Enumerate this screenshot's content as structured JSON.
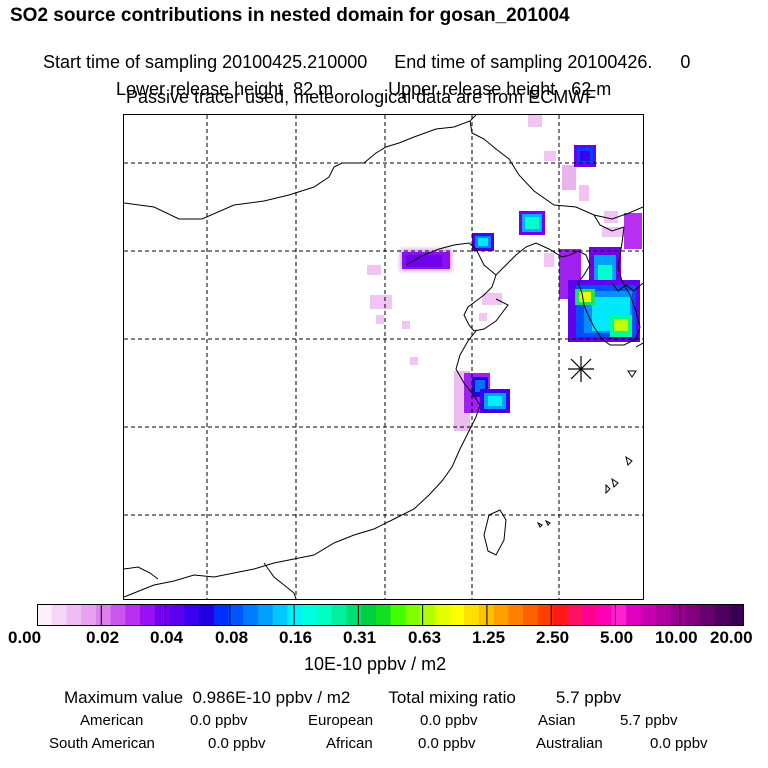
{
  "header": {
    "title": "SO2 source contributions in nested domain for gosan_201004",
    "start_label": "Start time of sampling 20100425.210000",
    "end_label": "End time of sampling 20100426.",
    "end_value": "0",
    "lower_label": "Lower release height",
    "lower_value": "82 m",
    "upper_label": "Upper release height",
    "upper_value": "62 m",
    "tracer_note": "Passive tracer used, meteorological data are from ECMWF"
  },
  "map": {
    "receptor_symbol": "star-receptor"
  },
  "colorbar": {
    "ticks": [
      "0.00",
      "0.02",
      "0.04",
      "0.08",
      "0.16",
      "0.31",
      "0.63",
      "1.25",
      "2.50",
      "5.00",
      "10.00",
      "20.00"
    ],
    "units": "10E-10 ppbv / m2",
    "colors": [
      "#fdf0fd",
      "#f6d6f8",
      "#efbcf3",
      "#e8a2ee",
      "#dd80f2",
      "#cc55f0",
      "#b82ff2",
      "#9a10f5",
      "#7800f0",
      "#5a00ee",
      "#3a00f0",
      "#2000e0",
      "#0030ff",
      "#0055ff",
      "#007aff",
      "#00a0ff",
      "#00c8ff",
      "#00f0ff",
      "#00ffe0",
      "#00ffc0",
      "#00f0a0",
      "#00e070",
      "#00d040",
      "#10e020",
      "#40ff00",
      "#80ff00",
      "#b0ff00",
      "#e0ff00",
      "#ffff00",
      "#ffe000",
      "#ffc000",
      "#ffa000",
      "#ff8000",
      "#ff6000",
      "#ff4000",
      "#ff1818",
      "#ff1060",
      "#ff0090",
      "#ff00b8",
      "#ff20d0",
      "#e000c0",
      "#c800b0",
      "#b000a0",
      "#980090",
      "#800080",
      "#680070",
      "#500060",
      "#380050"
    ]
  },
  "summary": {
    "max_label": "Maximum value",
    "max_value": "0.986E-10 ppbv / m2",
    "total_label": "Total mixing ratio",
    "total_value": "5.7 ppbv",
    "regions": [
      {
        "name": "American",
        "value": "0.0 ppbv"
      },
      {
        "name": "European",
        "value": "0.0 ppbv"
      },
      {
        "name": "Asian",
        "value": "5.7 ppbv"
      },
      {
        "name": "South American",
        "value": "0.0 ppbv"
      },
      {
        "name": "African",
        "value": "0.0 ppbv"
      },
      {
        "name": "Australian",
        "value": "0.0 ppbv"
      }
    ]
  }
}
